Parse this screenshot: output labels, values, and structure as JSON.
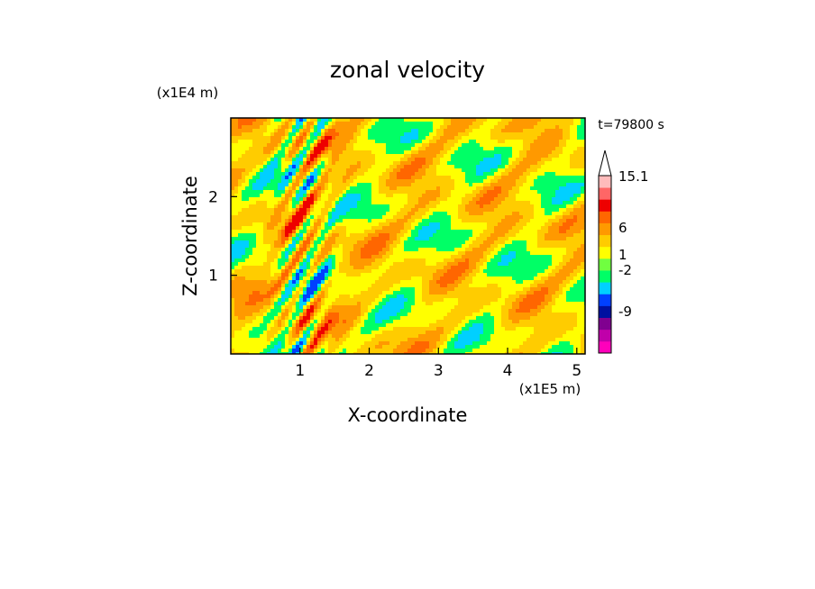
{
  "chart_data": {
    "type": "heatmap",
    "title": "zonal velocity",
    "time_label": "t=79800 s",
    "xlabel": "X-coordinate",
    "ylabel": "Z-coordinate",
    "x_scale_label": "(x1E5 m)",
    "y_scale_label": "(x1E4 m)",
    "x_ticks": [
      "1",
      "2",
      "3",
      "4",
      "5"
    ],
    "y_ticks": [
      "1",
      "2"
    ],
    "xlim": [
      0,
      5.12
    ],
    "ylim": [
      0,
      3.0
    ],
    "colorbar": {
      "labels": [
        "15.1",
        "6",
        "1",
        "-2",
        "-9"
      ],
      "level_colors": [
        "#ff00bb",
        "#c000aa",
        "#800090",
        "#0010a0",
        "#0040ff",
        "#00d0ff",
        "#00ff66",
        "#70ff40",
        "#ffff00",
        "#ffcc00",
        "#ff9900",
        "#ff6600",
        "#ee0000",
        "#ff6666",
        "#ffbbbb",
        "#ffffff"
      ]
    },
    "field_levels": [
      "#0040ff",
      "#00d0ff",
      "#00ff66",
      "#ffff00",
      "#ffcc00",
      "#ff9900",
      "#ff6600",
      "#ee0000"
    ]
  }
}
